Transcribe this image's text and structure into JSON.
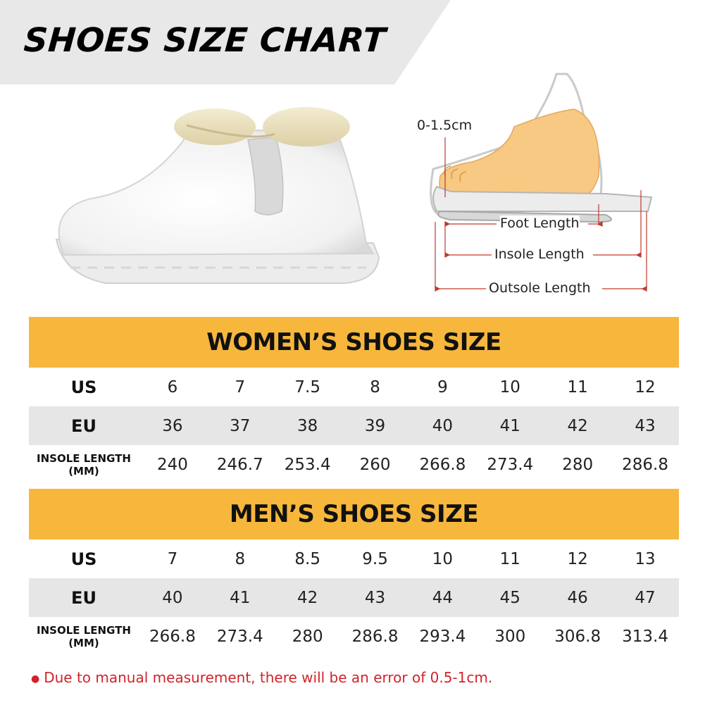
{
  "title": "SHOES SIZE CHART",
  "colors": {
    "banner_gray": "#e8e8e8",
    "header_orange": "#f7b73d",
    "row_gray": "#e6e6e6",
    "note_red": "#d2232a",
    "measure_red": "#c0392b",
    "skin": "#f7c983"
  },
  "diagram": {
    "heel_label": "0-1.5cm",
    "foot_length": "Foot Length",
    "insole_length": "Insole Length",
    "outsole_length": "Outsole Length"
  },
  "women": {
    "header": "WOMEN’S SHOES SIZE",
    "rows": [
      {
        "label": "US",
        "values": [
          "6",
          "7",
          "7.5",
          "8",
          "9",
          "10",
          "11",
          "12"
        ]
      },
      {
        "label": "EU",
        "values": [
          "36",
          "37",
          "38",
          "39",
          "40",
          "41",
          "42",
          "43"
        ]
      },
      {
        "label_line1": "INSOLE LENGTH",
        "label_line2": "(MM)",
        "values": [
          "240",
          "246.7",
          "253.4",
          "260",
          "266.8",
          "273.4",
          "280",
          "286.8"
        ]
      }
    ]
  },
  "men": {
    "header": "MEN’S SHOES SIZE",
    "rows": [
      {
        "label": "US",
        "values": [
          "7",
          "8",
          "8.5",
          "9.5",
          "10",
          "11",
          "12",
          "13"
        ]
      },
      {
        "label": "EU",
        "values": [
          "40",
          "41",
          "42",
          "43",
          "44",
          "45",
          "46",
          "47"
        ]
      },
      {
        "label_line1": "INSOLE LENGTH",
        "label_line2": "(MM)",
        "values": [
          "266.8",
          "273.4",
          "280",
          "286.8",
          "293.4",
          "300",
          "306.8",
          "313.4"
        ]
      }
    ]
  },
  "note": "Due to manual measurement, there will be an error of 0.5-1cm."
}
